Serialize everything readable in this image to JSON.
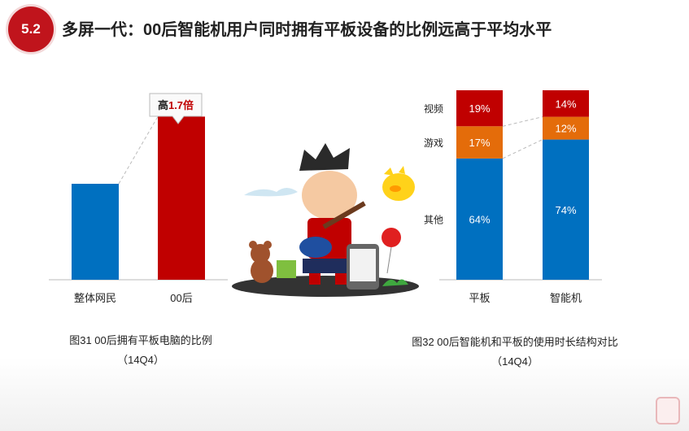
{
  "header": {
    "section_number": "5.2",
    "title": "多屏一代：00后智能机用户同时拥有平板设备的比例远高于平均水平"
  },
  "colors": {
    "blue": "#0070c0",
    "red": "#c00000",
    "orange": "#e46c0a",
    "accent": "#c0141c"
  },
  "chart_data": [
    {
      "type": "bar",
      "categories": [
        "整体网民",
        "00后"
      ],
      "values": [
        1.0,
        1.7
      ],
      "bar_colors": [
        "#0070c0",
        "#c00000"
      ],
      "annotation": {
        "prefix": "高",
        "value": "1.7倍"
      },
      "caption_line1": "图31 00后拥有平板电脑的比例",
      "caption_line2": "（14Q4）"
    },
    {
      "type": "bar",
      "stacked": true,
      "categories": [
        "平板",
        "智能机"
      ],
      "series": [
        {
          "name": "其他",
          "values": [
            64,
            74
          ],
          "labels": [
            "64%",
            "74%"
          ],
          "color": "#0070c0"
        },
        {
          "name": "游戏",
          "values": [
            17,
            12
          ],
          "labels": [
            "17%",
            "12%"
          ],
          "color": "#e46c0a"
        },
        {
          "name": "视频",
          "values": [
            19,
            14
          ],
          "labels": [
            "19%",
            "14%"
          ],
          "color": "#c00000"
        }
      ],
      "caption_line1": "图32  00后智能机和平板的使用时长结构对比",
      "caption_line2": "（14Q4）"
    }
  ]
}
